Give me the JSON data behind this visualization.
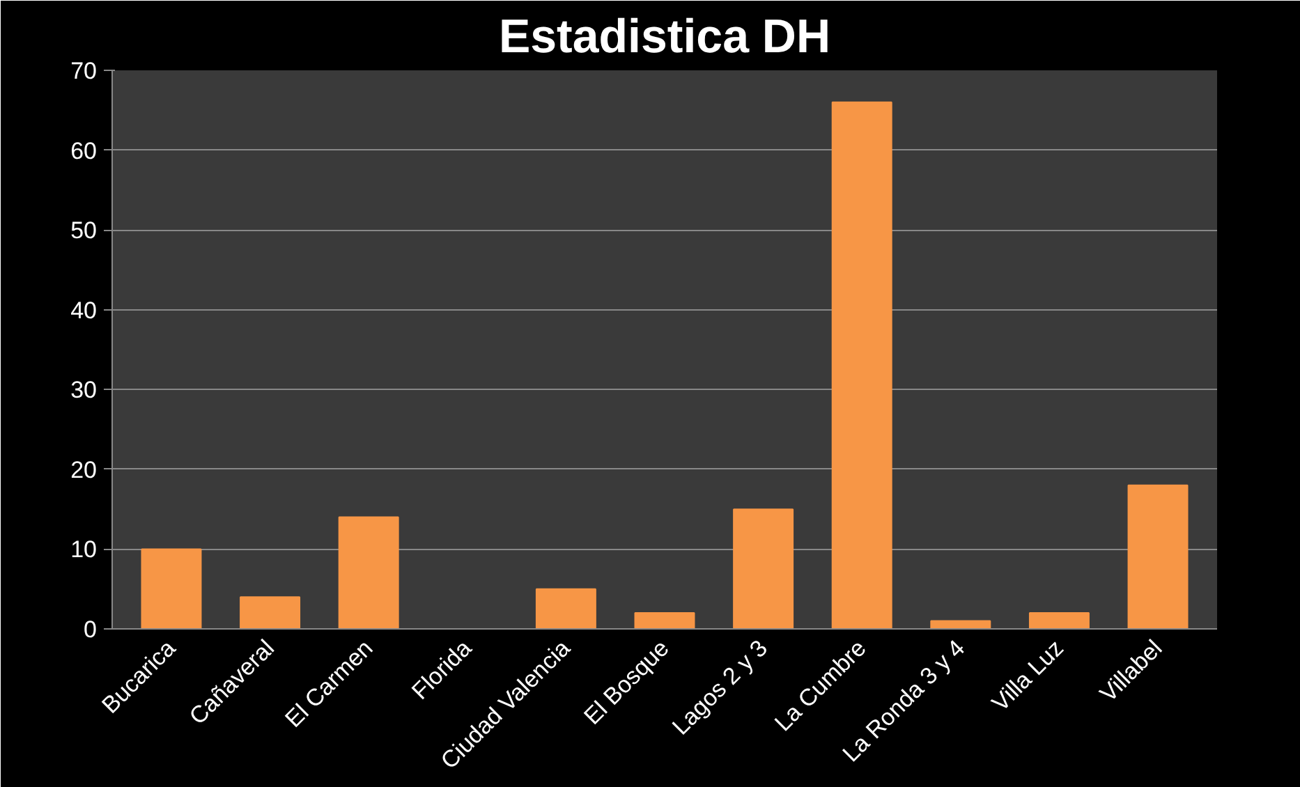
{
  "chart_data": {
    "type": "bar",
    "title": "Estadistica DH",
    "categories": [
      "Bucarica",
      "Cañaveral",
      "El Carmen",
      "Florida",
      "Ciudad Valencia",
      "El Bosque",
      "Lagos 2 y 3",
      "La Cumbre",
      "La Ronda 3 y 4",
      "Villa Luz",
      "Villabel"
    ],
    "values": [
      10,
      4,
      14,
      0,
      5,
      2,
      15,
      66,
      1,
      2,
      18
    ],
    "color": "#f79646",
    "ylim": [
      0,
      70
    ],
    "yticks": [
      0,
      10,
      20,
      30,
      40,
      50,
      60,
      70
    ],
    "grid": "y"
  }
}
